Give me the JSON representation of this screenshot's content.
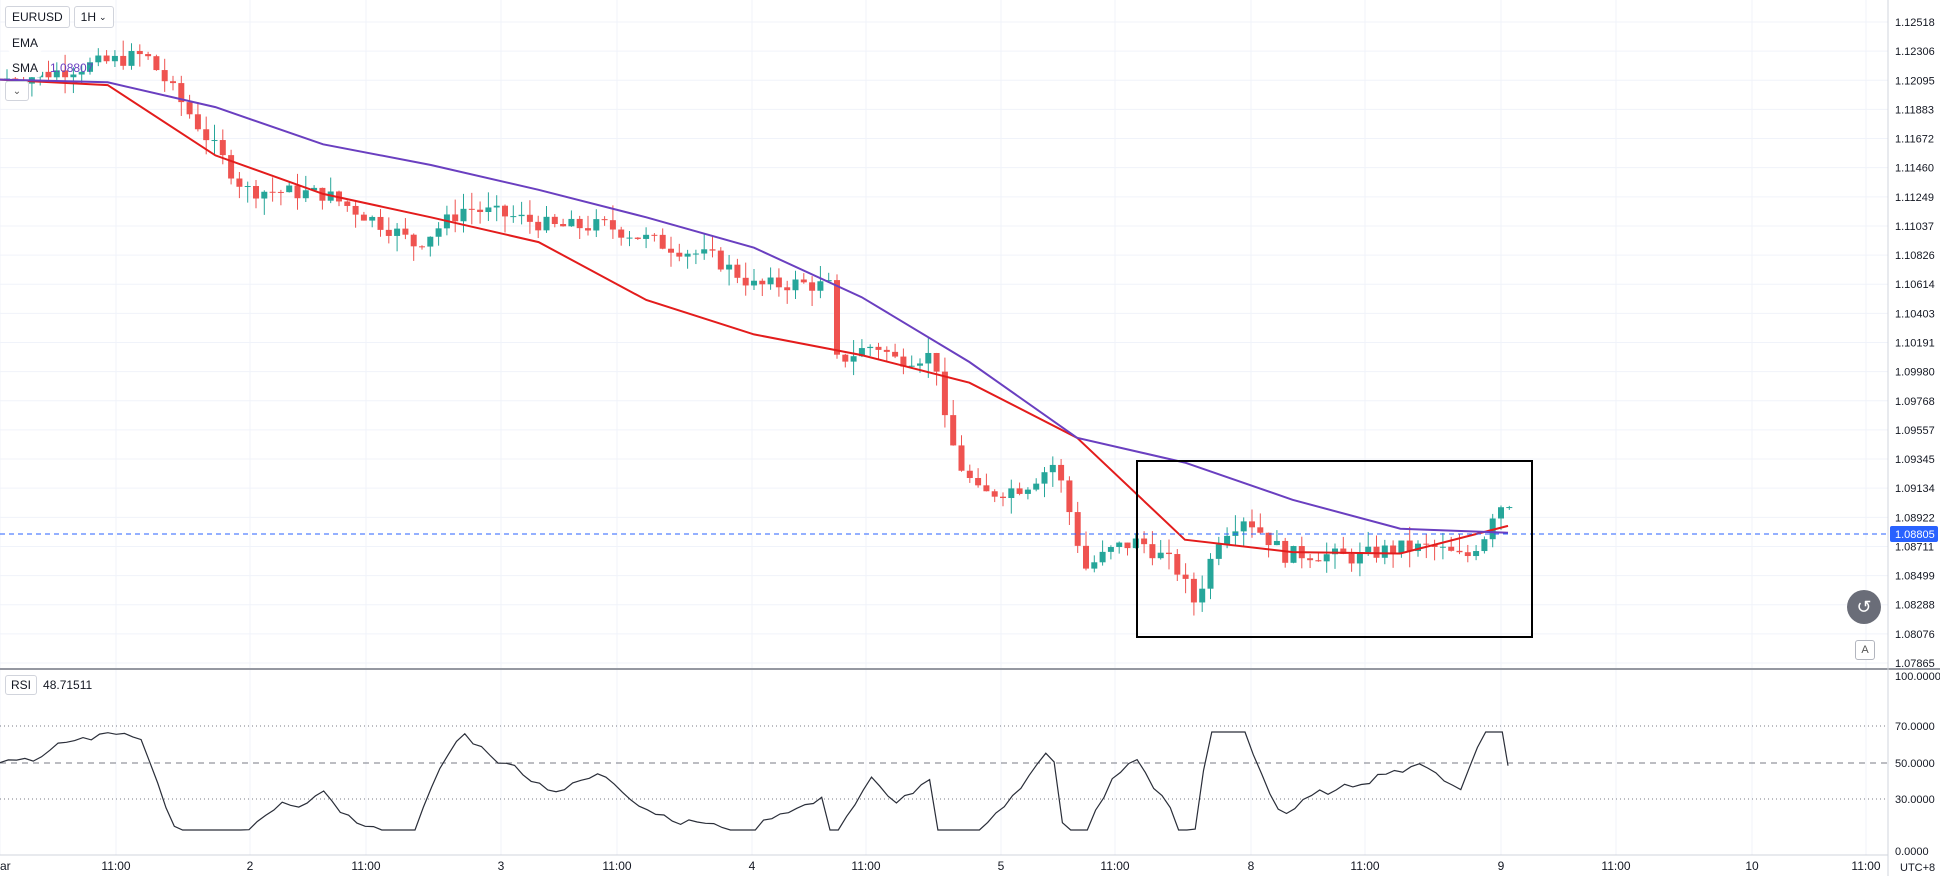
{
  "toolbar": {
    "symbol": "EURUSD",
    "interval": "1H",
    "chevron_icon": "chevron-down-icon"
  },
  "legend": {
    "ema_label": "EMA",
    "sma_label": "SMA",
    "sma_value": "1.08807",
    "collapse_icon": "chevron-down-icon"
  },
  "rsi": {
    "label": "RSI",
    "value": "48.71511"
  },
  "price_scale": [
    "1.12518",
    "1.12306",
    "1.12095",
    "1.11883",
    "1.11672",
    "1.11460",
    "1.11249",
    "1.11037",
    "1.10826",
    "1.10614",
    "1.10403",
    "1.10191",
    "1.09980",
    "1.09768",
    "1.09557",
    "1.09345",
    "1.09134",
    "1.08922",
    "1.08711",
    "1.08499",
    "1.08288",
    "1.08076",
    "1.07865"
  ],
  "current_price": "1.08805",
  "rsi_scale": [
    "100.0000",
    "70.0000",
    "50.0000",
    "30.0000",
    "0.0000"
  ],
  "time_axis": [
    "ar",
    "11:00",
    "2",
    "11:00",
    "3",
    "11:00",
    "4",
    "11:00",
    "5",
    "11:00",
    "8",
    "11:00",
    "9",
    "11:00",
    "10",
    "11:00"
  ],
  "timezone": "UTC+8",
  "colors": {
    "up": "#26a69a",
    "down": "#ef5350",
    "ema": "#e31c1c",
    "sma": "#6a3fc0",
    "price_line": "#2962ff"
  },
  "chart_data": {
    "type": "candlestick",
    "symbol": "EURUSD",
    "interval": "1H",
    "ylim": [
      1.07865,
      1.12518
    ],
    "days": [
      "2",
      "3",
      "4",
      "5",
      "8",
      "9"
    ],
    "close_last": 1.08805,
    "ema_trend": [
      1.121,
      1.1206,
      1.1155,
      1.1127,
      1.111,
      1.1092,
      1.105,
      1.1025,
      1.101,
      1.099,
      1.095,
      1.0876,
      1.0867,
      1.0866,
      1.0886
    ],
    "sma_trend": [
      1.121,
      1.1208,
      1.119,
      1.1163,
      1.1148,
      1.113,
      1.111,
      1.1088,
      1.1052,
      1.1005,
      1.095,
      1.0932,
      1.0905,
      1.0884,
      1.0881
    ],
    "rsi": {
      "value": 48.71511,
      "levels": [
        70,
        50,
        30
      ],
      "ylim": [
        0,
        100
      ]
    },
    "annotation": "rectangle"
  }
}
